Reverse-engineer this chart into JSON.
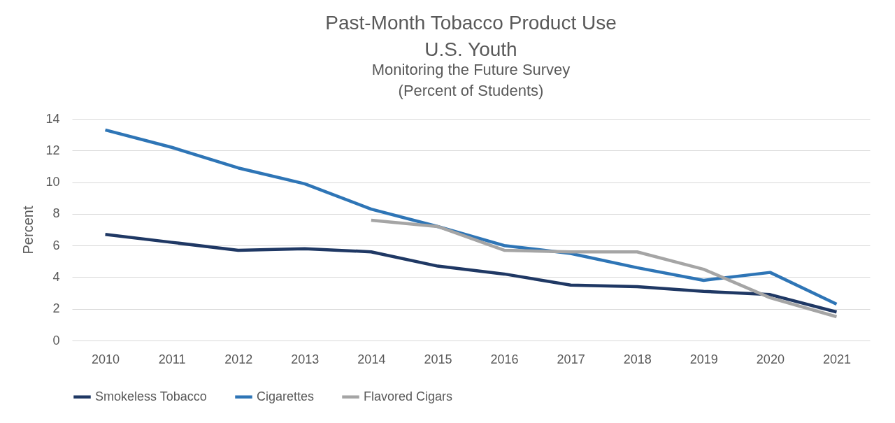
{
  "chart_data": {
    "type": "line",
    "title": "Past-Month Tobacco Product Use\nU.S. Youth",
    "subtitle": "Monitoring the Future Survey\n(Percent of Students)",
    "ylabel": "Percent",
    "categories": [
      "2010",
      "2011",
      "2012",
      "2013",
      "2014",
      "2015",
      "2016",
      "2017",
      "2018",
      "2019",
      "2020",
      "2021"
    ],
    "series": [
      {
        "name": "Smokeless Tobacco",
        "color": "#1f3864",
        "values": [
          6.7,
          6.2,
          5.7,
          5.8,
          5.6,
          4.7,
          4.2,
          3.5,
          3.4,
          3.1,
          2.9,
          1.8
        ]
      },
      {
        "name": "Cigarettes",
        "color": "#2e75b6",
        "values": [
          13.3,
          12.2,
          10.9,
          9.9,
          8.3,
          7.2,
          6.0,
          5.5,
          4.6,
          3.8,
          4.3,
          2.3
        ]
      },
      {
        "name": "Flavored Cigars",
        "color": "#a5a5a5",
        "values": [
          null,
          null,
          null,
          null,
          7.6,
          7.2,
          5.7,
          5.6,
          5.6,
          4.5,
          2.7,
          1.5
        ]
      }
    ],
    "ylim": [
      0,
      14
    ],
    "yticks": [
      0,
      2,
      4,
      6,
      8,
      10,
      12,
      14
    ],
    "grid": "y",
    "legend": "bottom",
    "marker": "none",
    "line_style": "solid"
  }
}
